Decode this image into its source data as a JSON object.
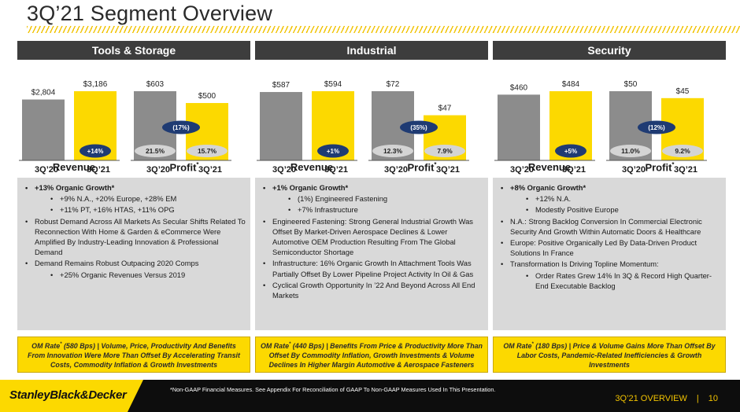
{
  "title": "3Q’21 Segment Overview",
  "colors": {
    "accent": "#fcd900",
    "gray_bar": "#8c8c8c",
    "dark_header": "#3d3d3d",
    "bubble_navy": "#1f3b73",
    "panel_gray": "#d9d9d9"
  },
  "segments": [
    {
      "name": "Tools & Storage",
      "revenue": {
        "label": "Revenue",
        "values": [
          "$2,804",
          "$3,186"
        ],
        "numeric": [
          2804,
          3186
        ],
        "growth": "+14%"
      },
      "profit": {
        "label": "Profit",
        "mark": "*",
        "values": [
          "$603",
          "$500"
        ],
        "numeric": [
          603,
          500
        ],
        "margins": [
          "21.5%",
          "15.7%"
        ],
        "change": "(17%)"
      },
      "periods": [
        "3Q’20",
        "3Q’21"
      ],
      "bullets": [
        {
          "text": "+13% Organic Growth*",
          "level": 0,
          "bold": true
        },
        {
          "text": "+9% N.A., +20% Europe, +28% EM",
          "level": 1
        },
        {
          "text": "+11% PT, +16% HTAS, +11% OPG",
          "level": 1
        },
        {
          "text": "Robust Demand Across All Markets As Secular Shifts Related To Reconnection With Home & Garden & eCommerce Were Amplified By Industry-Leading Innovation & Professional Demand",
          "level": 0
        },
        {
          "text": "Demand Remains Robust Outpacing 2020 Comps",
          "level": 0
        },
        {
          "text": "+25% Organic Revenues Versus 2019",
          "level": 1
        }
      ],
      "om_prefix": "OM Rate",
      "om_text": " (580 Bps) | Volume, Price, Productivity And Benefits From Innovation Were More Than Offset By Accelerating Transit Costs, Commodity Inflation & Growth Investments"
    },
    {
      "name": "Industrial",
      "revenue": {
        "label": "Revenue",
        "values": [
          "$587",
          "$594"
        ],
        "numeric": [
          587,
          594
        ],
        "growth": "+1%"
      },
      "profit": {
        "label": "Profit",
        "mark": "*",
        "values": [
          "$72",
          "$47"
        ],
        "numeric": [
          72,
          47
        ],
        "margins": [
          "12.3%",
          "7.9%"
        ],
        "change": "(35%)"
      },
      "periods": [
        "3Q’20",
        "3Q’21"
      ],
      "bullets": [
        {
          "text": "+1% Organic Growth*",
          "level": 0,
          "bold": true
        },
        {
          "text": "(1%) Engineered Fastening",
          "level": 1
        },
        {
          "text": "+7% Infrastructure",
          "level": 1
        },
        {
          "text": "Engineered Fastening: Strong General Industrial Growth Was Offset By Market-Driven Aerospace Declines & Lower Automotive OEM Production Resulting From The Global Semiconductor Shortage",
          "level": 0
        },
        {
          "text": "Infrastructure: 16% Organic Growth In Attachment Tools Was Partially Offset By Lower Pipeline Project Activity In Oil & Gas",
          "level": 0
        },
        {
          "text": "Cyclical Growth Opportunity In ’22 And Beyond Across All End Markets",
          "level": 0
        }
      ],
      "om_prefix": "OM Rate",
      "om_text": " (440 Bps) | Benefits From Price & Productivity More Than Offset By Commodity Inflation, Growth Investments & Volume Declines In Higher Margin Automotive & Aerospace Fasteners"
    },
    {
      "name": "Security",
      "revenue": {
        "label": "Revenue",
        "values": [
          "$460",
          "$484"
        ],
        "numeric": [
          460,
          484
        ],
        "growth": "+5%"
      },
      "profit": {
        "label": "Profit",
        "mark": "*",
        "values": [
          "$50",
          "$45"
        ],
        "numeric": [
          50,
          45
        ],
        "margins": [
          "11.0%",
          "9.2%"
        ],
        "change": "(12%)"
      },
      "periods": [
        "3Q’20",
        "3Q’21"
      ],
      "bullets": [
        {
          "text": "+8% Organic Growth*",
          "level": 0,
          "bold": true
        },
        {
          "text": "+12% N.A.",
          "level": 1
        },
        {
          "text": "Modestly Positive Europe",
          "level": 1
        },
        {
          "text": "N.A.: Strong Backlog Conversion In Commercial Electronic Security And Growth Within Automatic Doors & Healthcare",
          "level": 0
        },
        {
          "text": "Europe: Positive Organically Led By Data-Driven Product Solutions In France",
          "level": 0
        },
        {
          "text": "Transformation Is Driving Topline Momentum:",
          "level": 0
        },
        {
          "text": "Order Rates Grew 14% In 3Q & Record High Quarter-End Executable Backlog",
          "level": 1
        }
      ],
      "om_prefix": "OM Rate",
      "om_text": " (180 Bps) | Price & Volume Gains More Than Offset By Labor Costs, Pandemic-Related Inefficiencies & Growth Investments"
    }
  ],
  "footer": {
    "logo": "StanleyBlack&Decker",
    "disclaimer": "*Non-GAAP Financial Measures. See Appendix For Reconciliation of GAAP To Non-GAAP Measures Used In This Presentation.",
    "section": "3Q’21 OVERVIEW",
    "separator": "|",
    "page": "10"
  }
}
